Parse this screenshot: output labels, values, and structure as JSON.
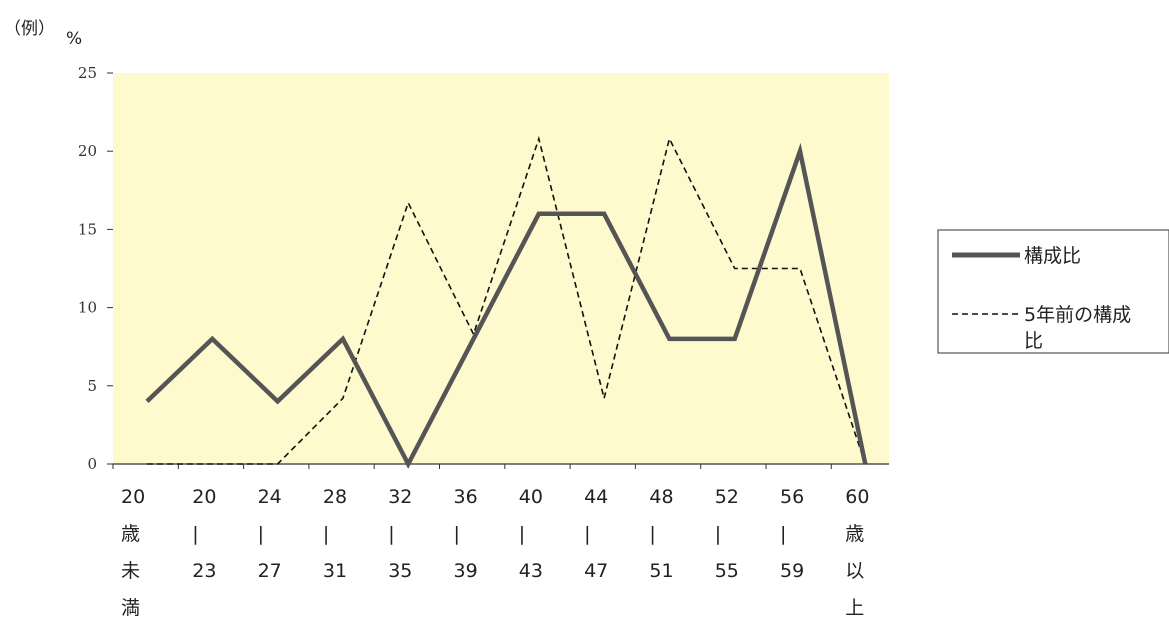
{
  "chart_data": {
    "type": "line",
    "y_unit_label": "（例）",
    "y_unit_symbol": "%",
    "ylim": [
      0,
      25
    ],
    "yticks": [
      "0",
      "5",
      "10",
      "15",
      "20",
      "25"
    ],
    "background_color": "#FFFACD",
    "categories": [
      [
        "20",
        "歳",
        "未",
        "満"
      ],
      [
        "20",
        "|",
        "23"
      ],
      [
        "24",
        "|",
        "27"
      ],
      [
        "28",
        "|",
        "31"
      ],
      [
        "32",
        "|",
        "35"
      ],
      [
        "36",
        "|",
        "39"
      ],
      [
        "40",
        "|",
        "43"
      ],
      [
        "44",
        "|",
        "47"
      ],
      [
        "48",
        "|",
        "51"
      ],
      [
        "52",
        "|",
        "55"
      ],
      [
        "56",
        "|",
        "59"
      ],
      [
        "60",
        "歳",
        "以",
        "上"
      ]
    ],
    "series": [
      {
        "name": "構成比",
        "style": "solid",
        "color": "#555555",
        "values": [
          4,
          8,
          4,
          8,
          0,
          8,
          16,
          16,
          8,
          8,
          20,
          0
        ]
      },
      {
        "name": "5年前の構成比",
        "style": "dashed",
        "color": "#111111",
        "values": [
          0,
          0,
          0,
          4.2,
          16.7,
          8.3,
          20.8,
          4.2,
          20.8,
          12.5,
          12.5,
          0
        ]
      }
    ],
    "legend_position": "right",
    "grid": false
  }
}
